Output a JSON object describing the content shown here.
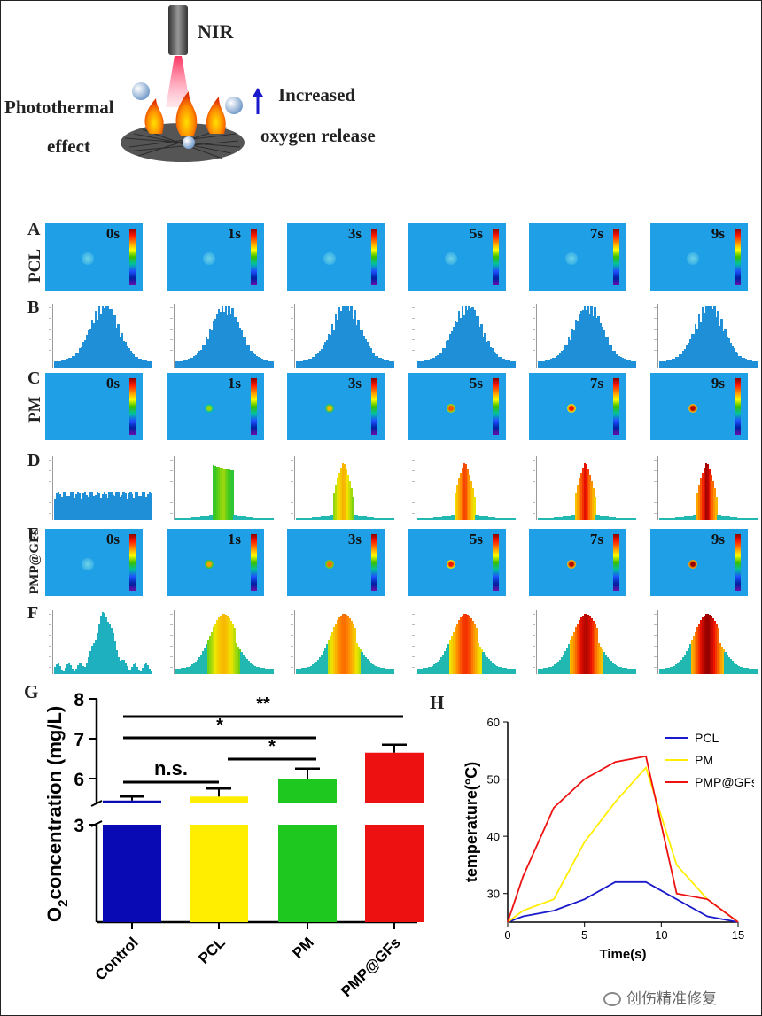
{
  "schematic": {
    "nir_label": "NIR",
    "photothermal_label_line1": "Photothermal",
    "photothermal_label_line2": "effect",
    "increased_label": "Increased",
    "oxygen_label": "oxygen release"
  },
  "rows": [
    {
      "letter": "A",
      "side_label": "PCL",
      "kind": "thermal",
      "times": [
        "0s",
        "1s",
        "3s",
        "5s",
        "7s",
        "9s"
      ],
      "spots": [
        0.1,
        0.1,
        0.1,
        0.1,
        0.1,
        0.1
      ]
    },
    {
      "letter": "B",
      "kind": "histogram",
      "profile": "pcl"
    },
    {
      "letter": "C",
      "side_label": "PM",
      "kind": "thermal",
      "times": [
        "0s",
        "1s",
        "3s",
        "5s",
        "7s",
        "9s"
      ],
      "spots": [
        0,
        0.35,
        0.55,
        0.75,
        0.85,
        0.95
      ]
    },
    {
      "letter": "D",
      "kind": "histogram",
      "profile": "pm"
    },
    {
      "letter": "E",
      "side_label": "PMP@GFs",
      "kind": "thermal",
      "times": [
        "0s",
        "1s",
        "3s",
        "5s",
        "7s",
        "9s"
      ],
      "spots": [
        0.1,
        0.6,
        0.7,
        0.85,
        0.95,
        1.0
      ]
    },
    {
      "letter": "F",
      "kind": "histogram",
      "profile": "pmp"
    }
  ],
  "chart_data": [
    {
      "type": "bar",
      "panel": "G",
      "title": "",
      "categories": [
        "Control",
        "PCL",
        "PM",
        "PMP@GFs"
      ],
      "values": [
        5.45,
        5.55,
        6.0,
        6.65
      ],
      "errors": [
        0.1,
        0.2,
        0.25,
        0.2
      ],
      "colors": [
        "#0a0ab5",
        "#ffee00",
        "#1ec81e",
        "#ee1111"
      ],
      "ylabel_main": "O",
      "ylabel_sub": "2",
      "ylabel_rest": "concentration (mg/L)",
      "yticks_upper": [
        6,
        7,
        8
      ],
      "yticks_lower": [
        3
      ],
      "ylim_upper": [
        5.4,
        8
      ],
      "axis_break": true,
      "significance": [
        {
          "from": 0,
          "to": 3,
          "label": "**"
        },
        {
          "from": 0,
          "to": 2,
          "label": "*"
        },
        {
          "from": 1,
          "to": 2,
          "label": "*"
        },
        {
          "from": 0,
          "to": 1,
          "label": "n.s."
        }
      ]
    },
    {
      "type": "line",
      "panel": "H",
      "xlabel": "Time(s)",
      "ylabel": "temperature(°C)",
      "xlim": [
        0,
        15
      ],
      "ylim": [
        25,
        60
      ],
      "xticks": [
        0,
        5,
        10,
        15
      ],
      "yticks": [
        30,
        40,
        50,
        60
      ],
      "series": [
        {
          "name": "PCL",
          "color": "#1a1acc",
          "x": [
            0,
            1,
            3,
            5,
            7,
            9,
            11,
            13,
            15
          ],
          "y": [
            25,
            26,
            27,
            29,
            32,
            32,
            29,
            26,
            25
          ]
        },
        {
          "name": "PM",
          "color": "#ffee00",
          "x": [
            0,
            1,
            3,
            5,
            7,
            9,
            11,
            13,
            15
          ],
          "y": [
            25,
            27,
            29,
            39,
            46,
            52,
            35,
            29,
            25
          ]
        },
        {
          "name": "PMP@GFs",
          "color": "#ee1111",
          "x": [
            0,
            1,
            3,
            5,
            7,
            9,
            11,
            13,
            15
          ],
          "y": [
            25,
            33,
            45,
            50,
            53,
            54,
            30,
            29,
            25
          ]
        }
      ]
    }
  ],
  "watermark": "创伤精准修复"
}
